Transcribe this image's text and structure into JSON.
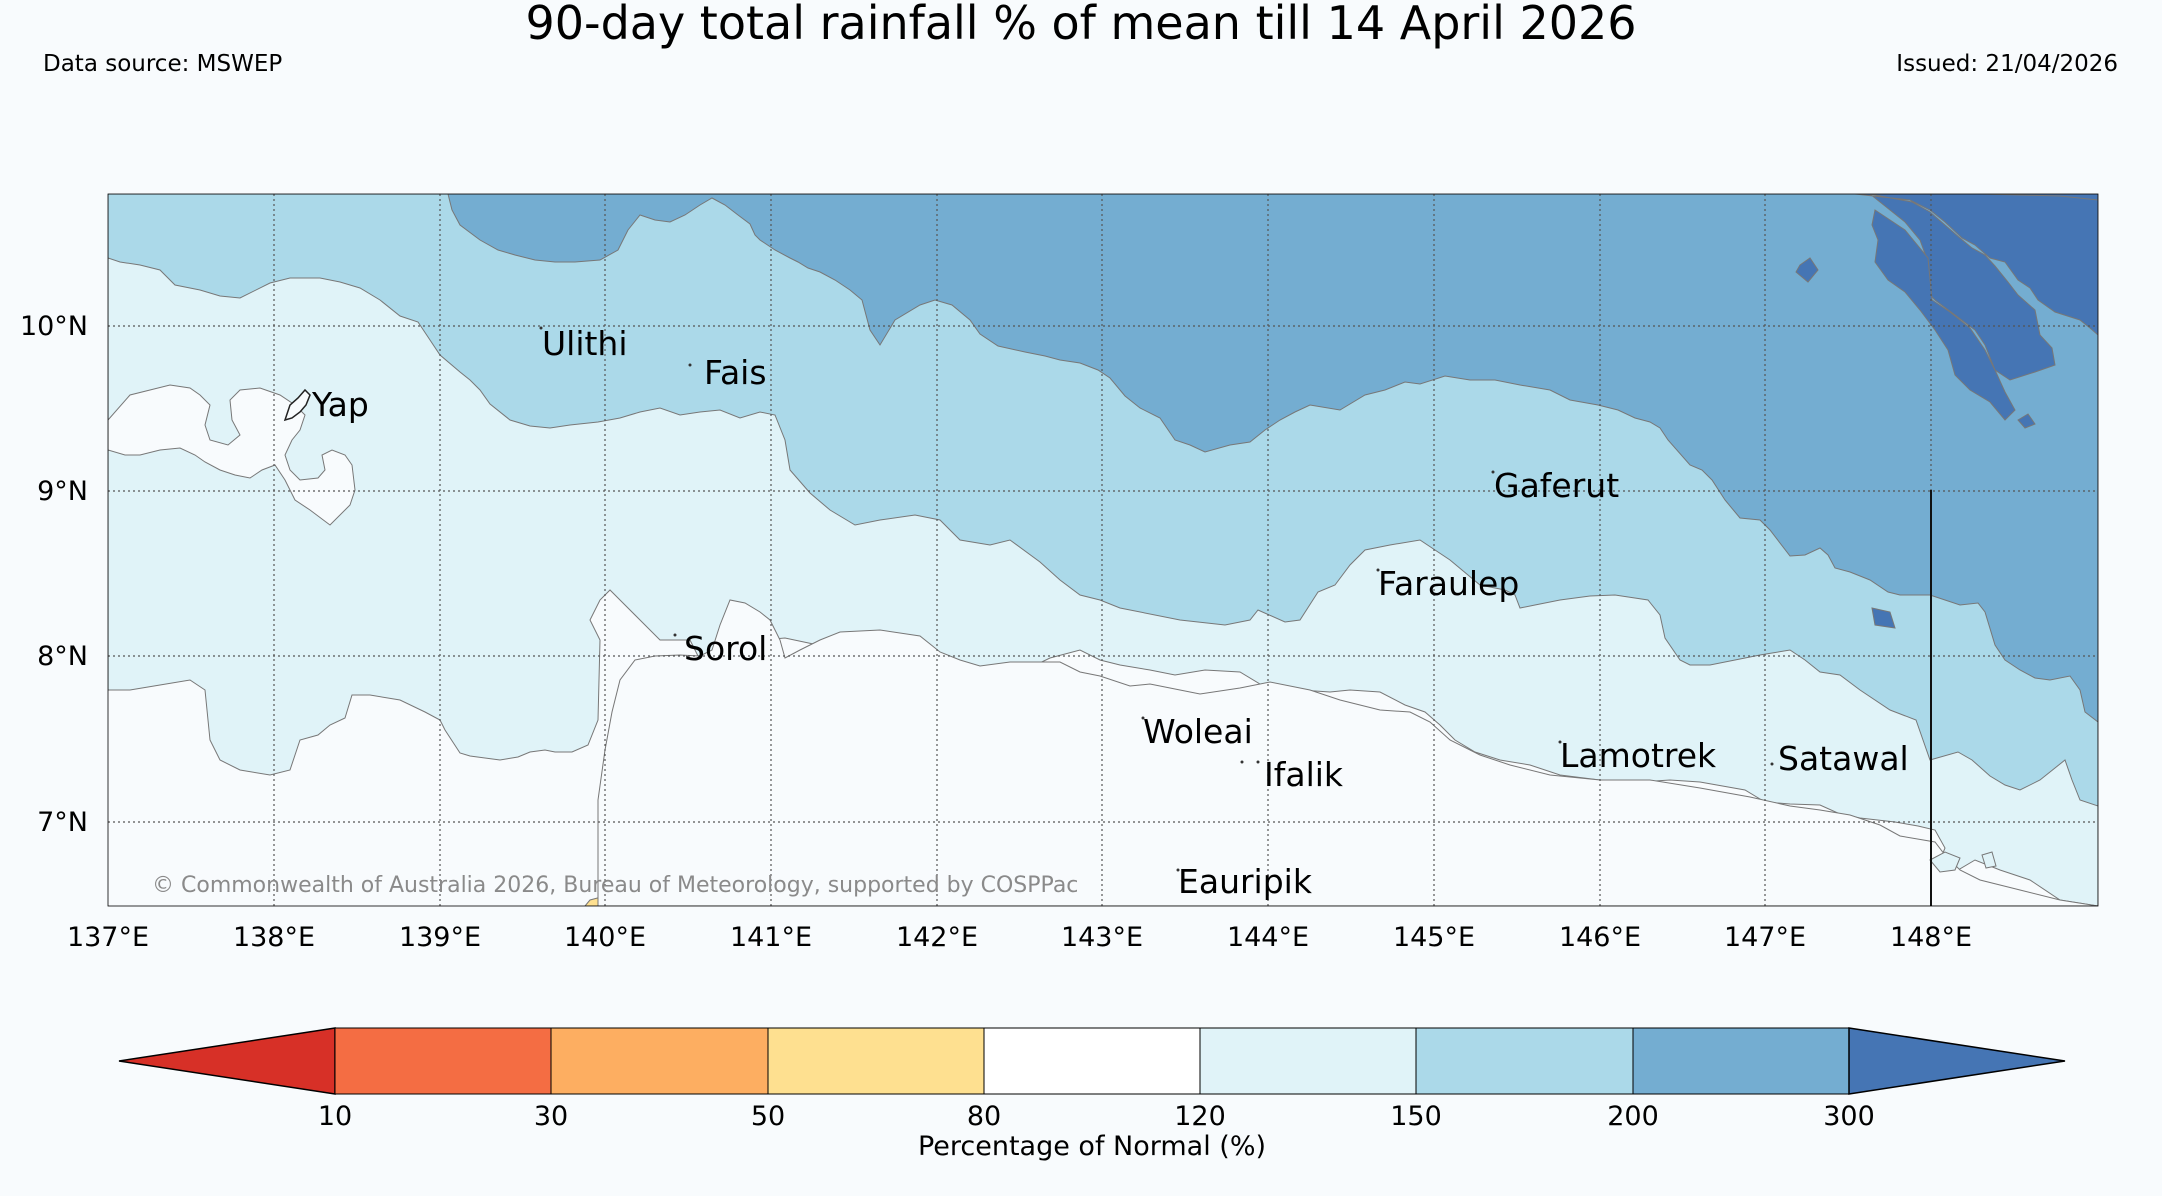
{
  "title": "90-day total rainfall % of mean till 14 April 2026",
  "data_source": "Data source: MSWEP",
  "issued": "Issued: 21/04/2026",
  "copyright": "© Commonwealth of Australia 2026, Bureau of Meteorology, supported by COSPPac",
  "lat_ticks": [
    "10°N",
    "9°N",
    "8°N",
    "7°N"
  ],
  "lon_ticks": [
    "137°E",
    "138°E",
    "139°E",
    "140°E",
    "141°E",
    "142°E",
    "143°E",
    "144°E",
    "145°E",
    "146°E",
    "147°E",
    "148°E"
  ],
  "places": [
    "Ulithi",
    "Fais",
    "Yap",
    "Gaferut",
    "Faraulep",
    "Sorol",
    "Woleai",
    "Ifalik",
    "Lamotrek",
    "Satawal",
    "Eauripik"
  ],
  "colorbar": {
    "title": "Percentage of Normal (%)",
    "ticks": [
      "10",
      "30",
      "50",
      "80",
      "120",
      "150",
      "200",
      "300"
    ],
    "bins": [
      {
        "label": "<10",
        "color": "#d73027"
      },
      {
        "label": "10-30",
        "color": "#f46d43"
      },
      {
        "label": "30-50",
        "color": "#fdae61"
      },
      {
        "label": "50-80",
        "color": "#fee090"
      },
      {
        "label": "80-120",
        "color": "#ffffff"
      },
      {
        "label": "120-150",
        "color": "#e0f3f8"
      },
      {
        "label": "150-200",
        "color": "#abd9e9"
      },
      {
        "label": "200-300",
        "color": "#74add1"
      },
      {
        "label": ">300",
        "color": "#4575b4"
      }
    ]
  },
  "colors": {
    "background": "#f8fbfd",
    "band_80_120": "#f8fbfd",
    "band_50_80": "#fee090",
    "band_120_150": "#e0f3f8",
    "band_150_200": "#abd9e9",
    "band_200_300": "#74add1",
    "band_300_plus": "#4575b4"
  }
}
